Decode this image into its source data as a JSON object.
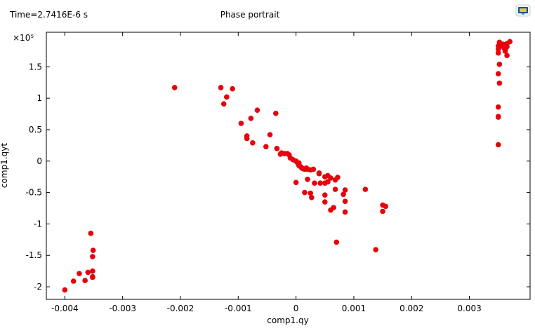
{
  "header": {
    "time_label": "Time=2.7416E-6 s",
    "title": "Phase portrait"
  },
  "toolbar": {
    "export_icon": "monitor-export-icon"
  },
  "chart_data": {
    "type": "scatter",
    "title": "Phase portrait",
    "xlabel": "comp1.qy",
    "ylabel": "comp1.qyt",
    "y_multiplier": "×10⁵",
    "xlim": [
      -0.00432,
      0.00405
    ],
    "ylim": [
      -2.2,
      2.05
    ],
    "grid": false,
    "x_ticks": [
      -0.004,
      -0.003,
      -0.002,
      -0.001,
      0,
      0.001,
      0.002,
      0.003
    ],
    "x_tick_labels": [
      "-0.004",
      "-0.003",
      "-0.002",
      "-0.001",
      "0",
      "0.001",
      "0.002",
      "0.003"
    ],
    "y_ticks": [
      -2,
      -1.5,
      -1,
      -0.5,
      0,
      0.5,
      1,
      1.5
    ],
    "y_tick_labels": [
      "-2",
      "-1.5",
      "-1",
      "-0.5",
      "0",
      "0.5",
      "1",
      "1.5"
    ],
    "series": [
      {
        "color": "#e8000b",
        "points": [
          [
            -0.004,
            -2.05
          ],
          [
            -0.00385,
            -1.91
          ],
          [
            -0.00375,
            -1.79
          ],
          [
            -0.00365,
            -1.9
          ],
          [
            -0.0036,
            -1.77
          ],
          [
            -0.00352,
            -1.75
          ],
          [
            -0.00352,
            -1.85
          ],
          [
            -0.00352,
            -1.84
          ],
          [
            -0.00352,
            -1.52
          ],
          [
            -0.00351,
            -1.42
          ],
          [
            -0.00355,
            -1.15
          ],
          [
            -0.0021,
            1.17
          ],
          [
            -0.0013,
            1.17
          ],
          [
            -0.00125,
            0.91
          ],
          [
            -0.0012,
            1.02
          ],
          [
            -0.0011,
            1.15
          ],
          [
            -0.00095,
            0.6
          ],
          [
            -0.00085,
            0.4
          ],
          [
            -0.00085,
            0.36
          ],
          [
            -0.00078,
            0.68
          ],
          [
            -0.00075,
            0.29
          ],
          [
            -0.00067,
            0.81
          ],
          [
            -0.00052,
            0.23
          ],
          [
            -0.00045,
            0.42
          ],
          [
            -0.00035,
            0.76
          ],
          [
            -0.00033,
            0.2
          ],
          [
            -0.00027,
            0.11
          ],
          [
            -0.00025,
            0.13
          ],
          [
            -0.0002,
            0.12
          ],
          [
            -0.00015,
            0.12
          ],
          [
            -0.00012,
            0.1
          ],
          [
            -0.0001,
            0.05
          ],
          [
            -5e-05,
            0.02
          ],
          [
            0.0,
            0.0
          ],
          [
            2e-05,
            -0.02
          ],
          [
            5e-05,
            -0.03
          ],
          [
            5e-05,
            -0.07
          ],
          [
            8e-05,
            -0.09
          ],
          [
            0.0001,
            -0.11
          ],
          [
            0.00012,
            -0.12
          ],
          [
            0.00015,
            -0.13
          ],
          [
            0.00018,
            -0.11
          ],
          [
            0.0002,
            -0.13
          ],
          [
            0.00025,
            -0.14
          ],
          [
            0.0003,
            -0.13
          ],
          [
            0.0004,
            -0.19
          ],
          [
            0.0004,
            -0.2
          ],
          [
            0.0005,
            -0.25
          ],
          [
            0.00055,
            -0.23
          ],
          [
            0.0006,
            -0.27
          ],
          [
            0.00068,
            -0.3
          ],
          [
            0.00072,
            -0.26
          ],
          [
            0.0,
            -0.34
          ],
          [
            0.0002,
            -0.29
          ],
          [
            0.00032,
            -0.35
          ],
          [
            0.00042,
            -0.35
          ],
          [
            0.0005,
            -0.35
          ],
          [
            0.00055,
            -0.33
          ],
          [
            0.00015,
            -0.5
          ],
          [
            0.00025,
            -0.51
          ],
          [
            0.00027,
            -0.58
          ],
          [
            0.0005,
            -0.54
          ],
          [
            0.00068,
            -0.45
          ],
          [
            0.00082,
            -0.53
          ],
          [
            0.00085,
            -0.46
          ],
          [
            0.00085,
            -0.64
          ],
          [
            0.0005,
            -0.65
          ],
          [
            0.00065,
            -0.74
          ],
          [
            0.0006,
            -0.78
          ],
          [
            0.00085,
            -0.81
          ],
          [
            0.0012,
            -0.45
          ],
          [
            0.0015,
            -0.7
          ],
          [
            0.00155,
            -0.72
          ],
          [
            0.0015,
            -0.8
          ],
          [
            0.00138,
            -1.41
          ],
          [
            0.0007,
            -1.29
          ],
          [
            0.0035,
            1.72
          ],
          [
            0.0035,
            1.78
          ],
          [
            0.0035,
            1.83
          ],
          [
            0.00352,
            1.89
          ],
          [
            0.00355,
            1.83
          ],
          [
            0.00358,
            1.86
          ],
          [
            0.0036,
            1.8
          ],
          [
            0.00362,
            1.75
          ],
          [
            0.00365,
            1.87
          ],
          [
            0.00362,
            1.78
          ],
          [
            0.0037,
            1.9
          ],
          [
            0.00365,
            1.82
          ],
          [
            0.00365,
            1.68
          ],
          [
            0.00352,
            1.54
          ],
          [
            0.0035,
            1.39
          ],
          [
            0.00352,
            1.24
          ],
          [
            0.0035,
            0.86
          ],
          [
            0.0035,
            0.71
          ],
          [
            0.0035,
            0.7
          ],
          [
            0.0035,
            0.26
          ]
        ]
      }
    ]
  }
}
